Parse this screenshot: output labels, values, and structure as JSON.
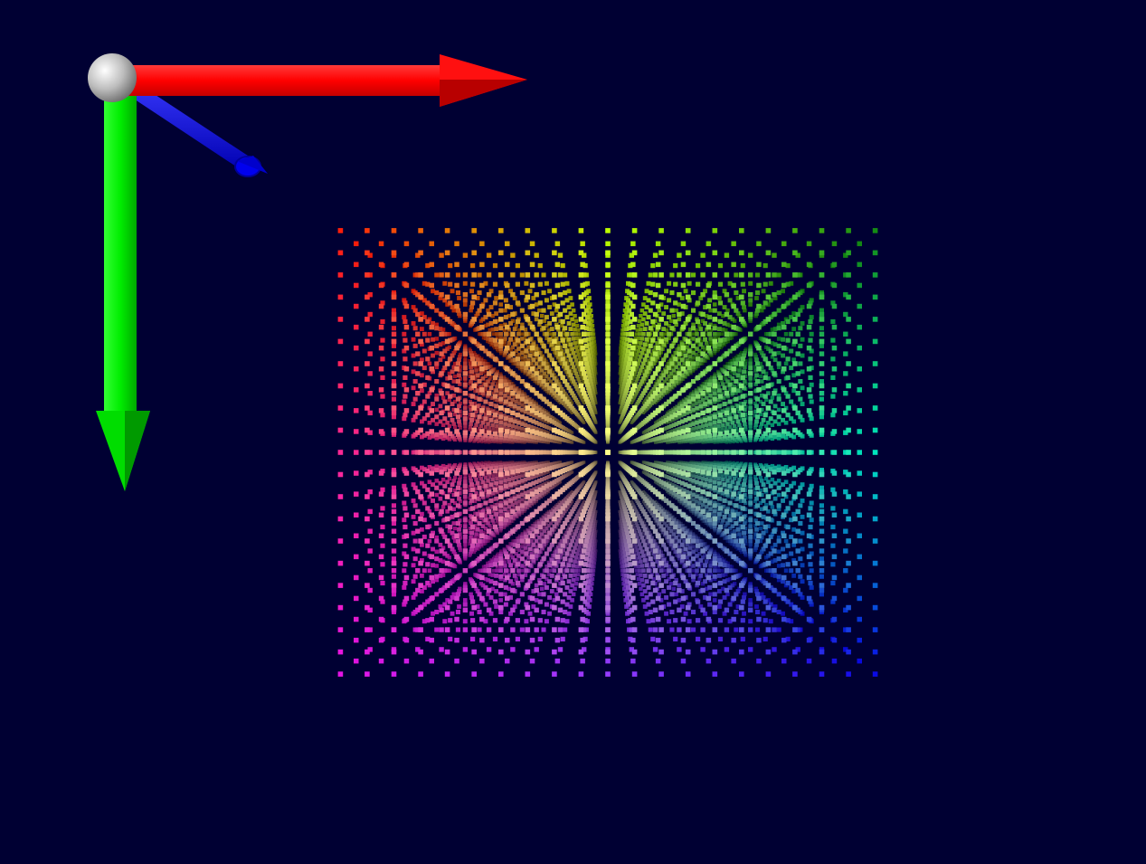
{
  "viewport": {
    "background_color": "#000033",
    "projection": "perspective"
  },
  "point_cloud": {
    "shape": "cube",
    "grid_steps": 20,
    "color_mapping": "position-to-rgb",
    "point_color_scheme": [
      "#ff0000",
      "#ffff00",
      "#00ff00",
      "#ff00ff",
      "#00ffff",
      "#0000ff"
    ]
  },
  "axes_gizmo": {
    "origin_marker": "sphere-icon",
    "origin_color": "#bfbfbf",
    "x_axis": {
      "icon": "arrow-right-icon",
      "color": "#ff0000"
    },
    "y_axis": {
      "icon": "arrow-down-icon",
      "color": "#00ee00"
    },
    "z_axis": {
      "icon": "arrow-diagonal-icon",
      "color": "#0000ff"
    }
  }
}
